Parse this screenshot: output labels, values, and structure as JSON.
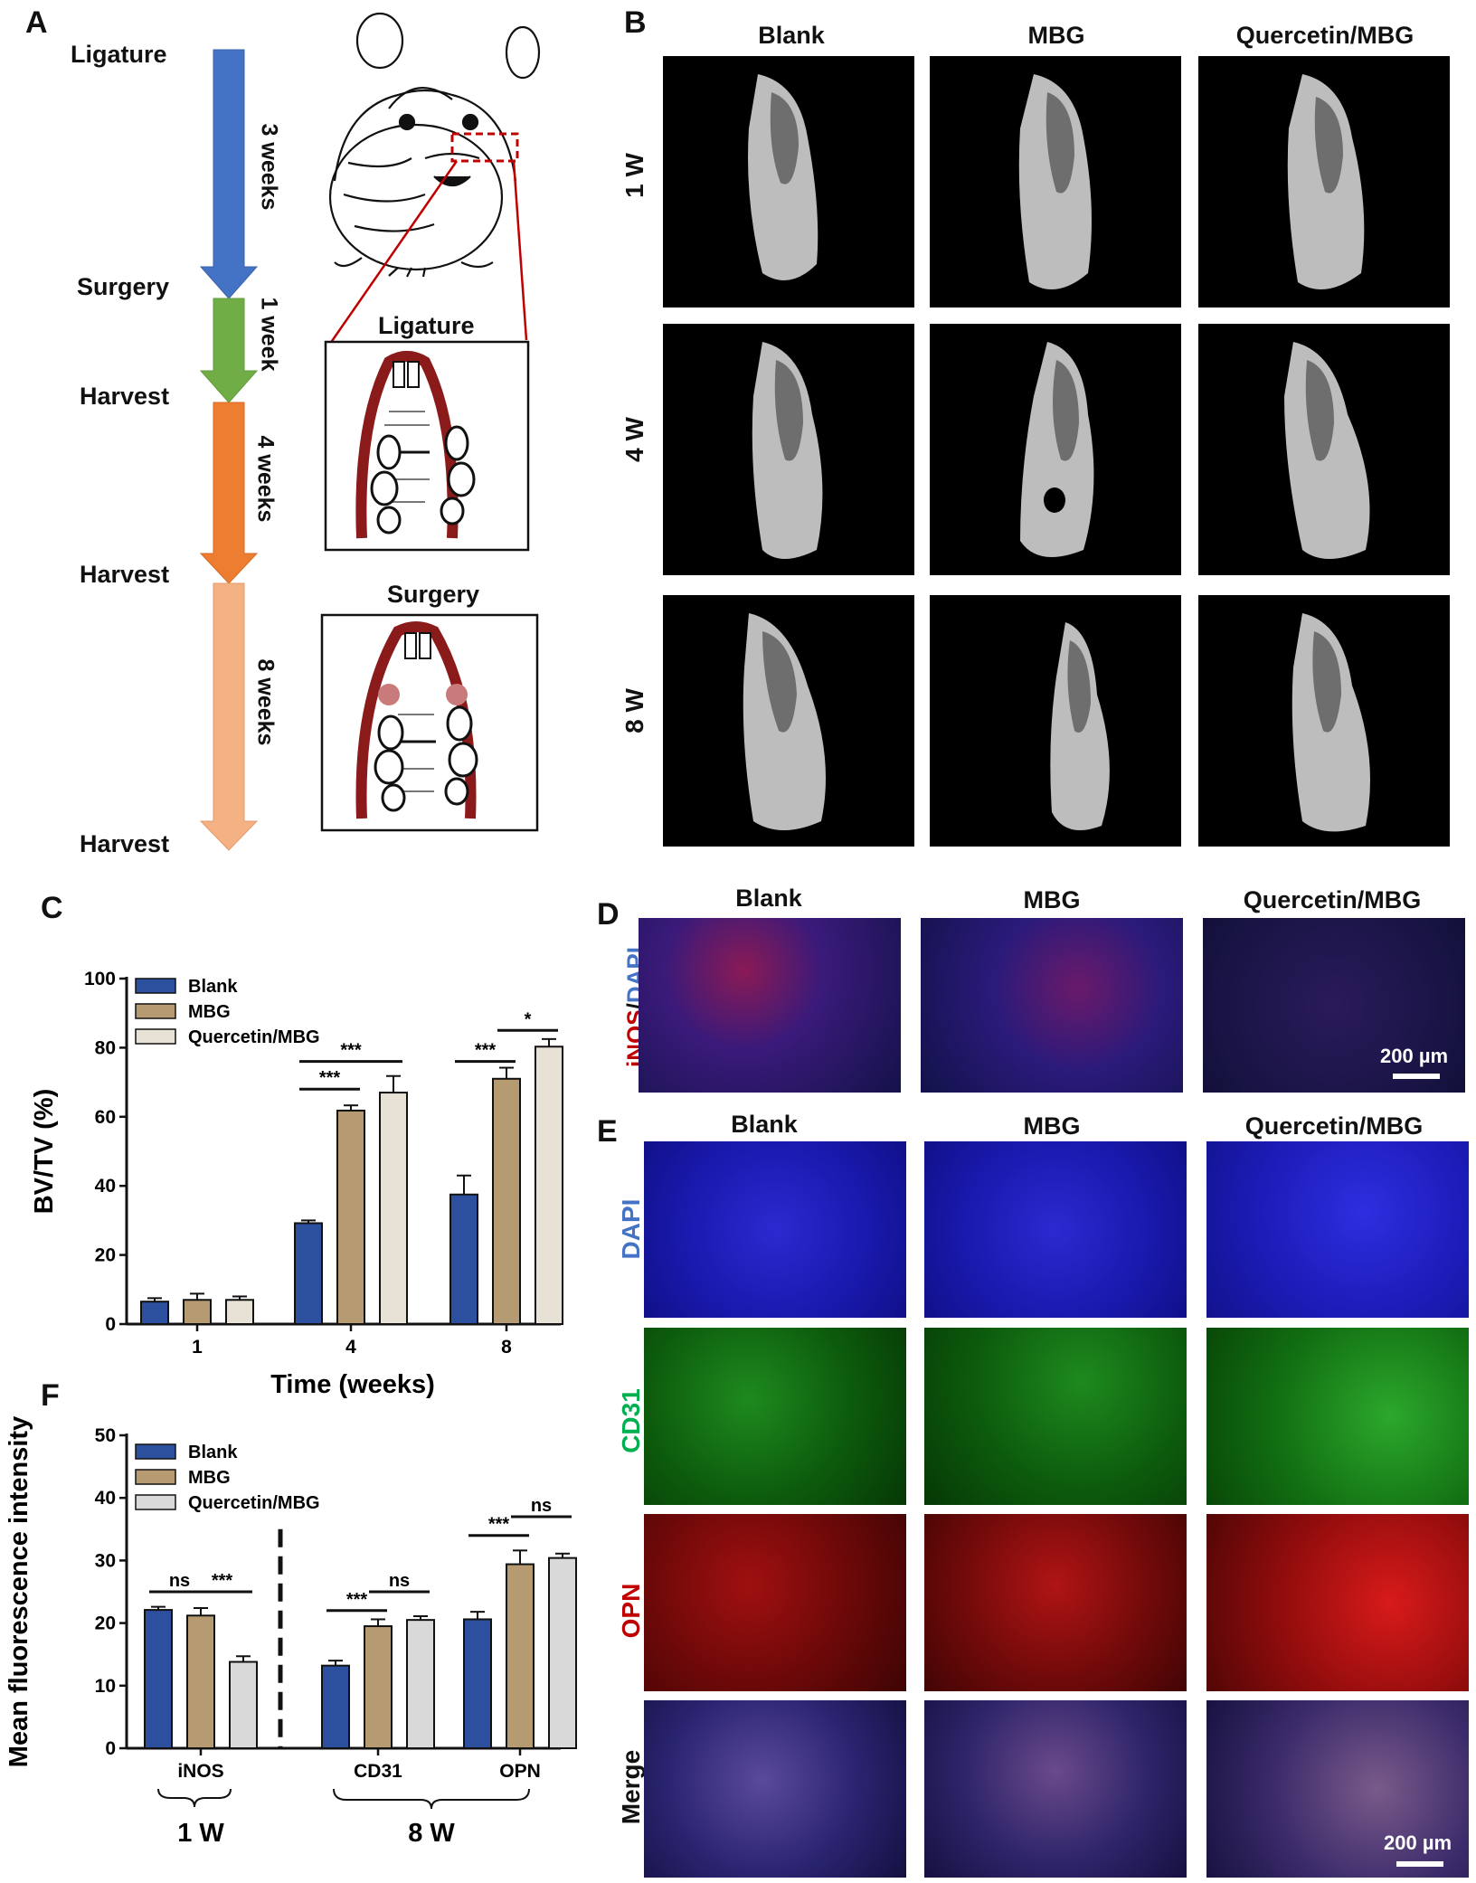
{
  "panel_letters": {
    "a": "A",
    "b": "B",
    "c": "C",
    "d": "D",
    "e": "E",
    "f": "F"
  },
  "panel_a": {
    "timeline": [
      "Ligature",
      "Surgery",
      "Harvest",
      "Harvest",
      "Harvest"
    ],
    "durations": [
      "3 weeks",
      "1 week",
      "4 weeks",
      "8 weeks"
    ],
    "inset_titles": [
      "Ligature",
      "Surgery"
    ]
  },
  "panel_b": {
    "columns": [
      "Blank",
      "MBG",
      "Quercetin/MBG"
    ],
    "rows": [
      "1 W",
      "4 W",
      "8 W"
    ]
  },
  "panel_d": {
    "columns": [
      "Blank",
      "MBG",
      "Quercetin/MBG"
    ],
    "row_label_red": "iNOS",
    "row_label_sep": "/",
    "row_label_blue": "DAPI",
    "scale": "200 µm"
  },
  "panel_e": {
    "columns": [
      "Blank",
      "MBG",
      "Quercetin/MBG"
    ],
    "rows": [
      "DAPI",
      "CD31",
      "OPN",
      "Merge"
    ],
    "scale": "200 µm"
  },
  "colors": {
    "blank": "#2c4f9e",
    "mbg": "#b59a72",
    "quercetin_c": "#e8e2d6",
    "quercetin_f": "#d9d9d9",
    "arrow_blue": "#4472c4",
    "arrow_green": "#70ad47",
    "arrow_orange": "#ed7d31",
    "arrow_peach": "#f4b183",
    "cd31_green": "#00b050",
    "opn_red": "#c00000",
    "dapi_blue": "#4472c4"
  },
  "chart_data": [
    {
      "panel": "C",
      "type": "bar",
      "categories": [
        "1",
        "4",
        "8"
      ],
      "series": [
        {
          "name": "Blank",
          "values": [
            6.5,
            29.2,
            37.5
          ],
          "errors": [
            1,
            0.8,
            5.5
          ]
        },
        {
          "name": "MBG",
          "values": [
            7,
            61.8,
            71
          ],
          "errors": [
            1.8,
            1.5,
            3.2
          ]
        },
        {
          "name": "Quercetin/MBG",
          "values": [
            7,
            67,
            80.3
          ],
          "errors": [
            1,
            4.8,
            2.2
          ]
        }
      ],
      "xlabel": "Time (weeks)",
      "ylabel": "BV/TV (%)",
      "ylim": [
        0,
        100
      ],
      "yticks": [
        0,
        20,
        40,
        60,
        80,
        100
      ],
      "legend": "top-left",
      "significance": [
        {
          "label": "***"
        },
        {
          "label": "***"
        },
        {
          "label": "***"
        },
        {
          "label": "*"
        }
      ]
    },
    {
      "panel": "F",
      "type": "bar",
      "categories": [
        "iNOS",
        "CD31",
        "OPN"
      ],
      "series": [
        {
          "name": "Blank",
          "values": [
            22.1,
            13.2,
            20.6
          ],
          "errors": [
            0.5,
            0.8,
            1.2
          ]
        },
        {
          "name": "MBG",
          "values": [
            21.2,
            19.5,
            29.4
          ],
          "errors": [
            1.2,
            1.1,
            2.2
          ]
        },
        {
          "name": "Quercetin/MBG",
          "values": [
            13.8,
            20.5,
            30.4
          ],
          "errors": [
            0.9,
            0.6,
            0.7
          ]
        }
      ],
      "ylabel": "Mean fluorescence intensity",
      "ylim": [
        0,
        50
      ],
      "yticks": [
        0,
        10,
        20,
        30,
        40,
        50
      ],
      "legend": "top-left",
      "group_labels": [
        "1 W",
        "8 W"
      ],
      "significance": [
        {
          "label": "ns"
        },
        {
          "label": "***"
        },
        {
          "label": "***"
        },
        {
          "label": "ns"
        },
        {
          "label": "***"
        },
        {
          "label": "ns"
        }
      ]
    }
  ]
}
